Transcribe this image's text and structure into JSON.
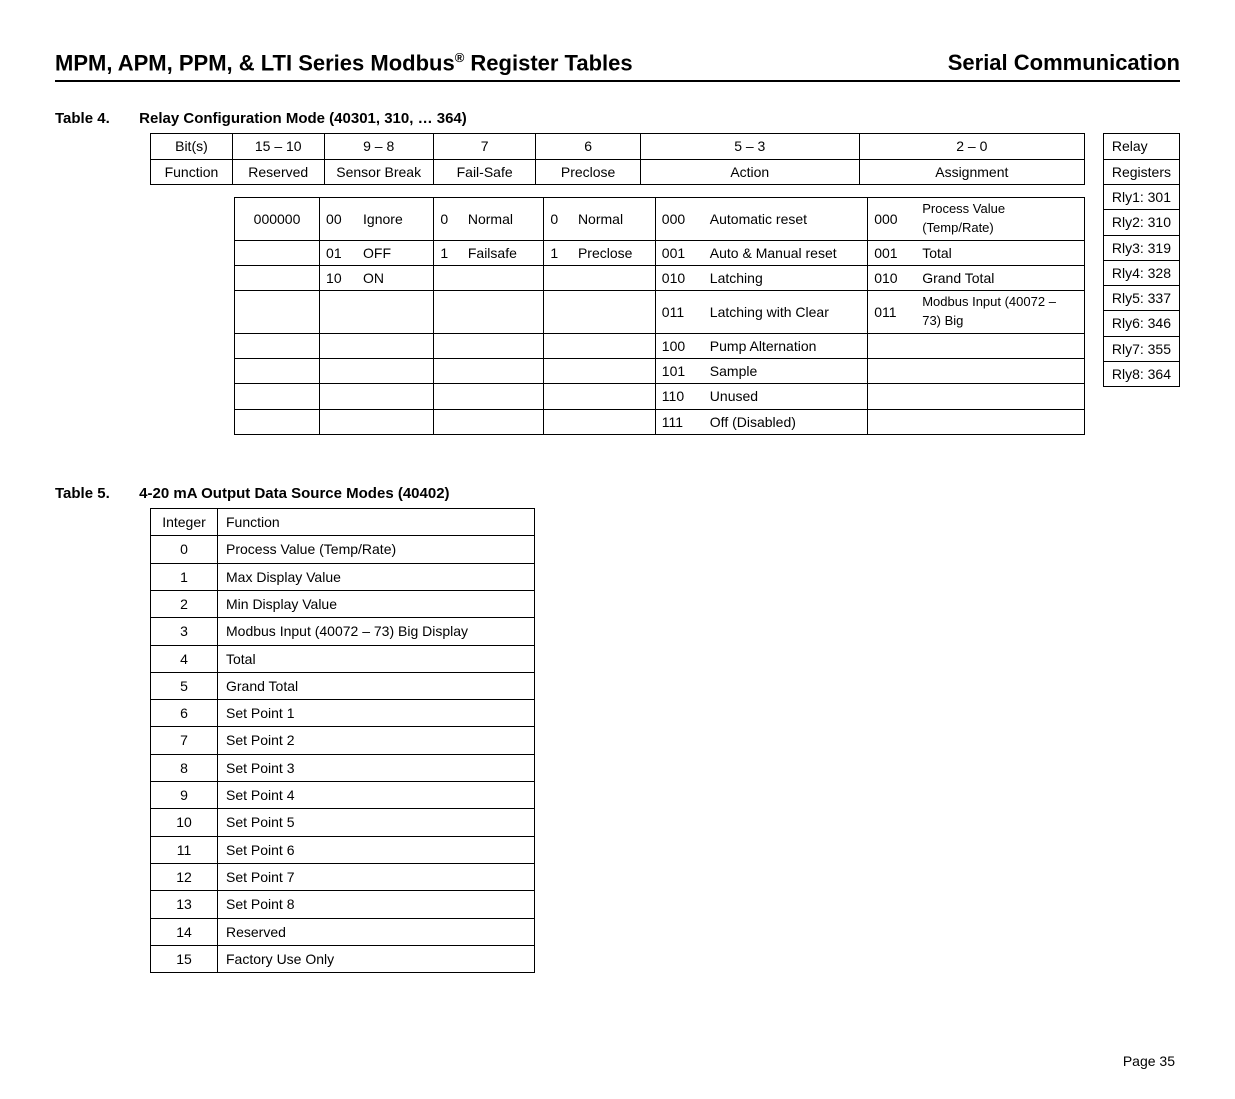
{
  "header": {
    "title_prefix": "MPM, APM, PPM, & LTI Series Modbus",
    "title_sup": "®",
    "title_suffix": " Register Tables",
    "right": "Serial Communication"
  },
  "table4": {
    "label_num": "Table 4.",
    "label_title": "Relay Configuration Mode (40301, 310, … 364)",
    "top_header_row1": [
      "Bit(s)",
      "15 – 10",
      "9 – 8",
      "7",
      "6",
      "5 – 3",
      "2 – 0"
    ],
    "top_header_row2": [
      "Function",
      "Reserved",
      "Sensor Break",
      "Fail-Safe",
      "Preclose",
      "Action",
      "Assignment"
    ],
    "col_widths": {
      "rowhdr": 70,
      "c15": 80,
      "c9": 100,
      "c7": 94,
      "c6": 94,
      "c5": 220,
      "c2": 220
    },
    "rows": [
      {
        "c15": "000000",
        "c9_code": "00",
        "c9_lbl": "Ignore",
        "c7_code": "0",
        "c7_lbl": "Normal",
        "c6_code": "0",
        "c6_lbl": "Normal",
        "c5_code": "000",
        "c5_lbl": "Automatic reset",
        "c2_code": "000",
        "c2_lbl": "Process Value (Temp/Rate)"
      },
      {
        "c15": "",
        "c9_code": "01",
        "c9_lbl": "OFF",
        "c7_code": "1",
        "c7_lbl": "Failsafe",
        "c6_code": "1",
        "c6_lbl": "Preclose",
        "c5_code": "001",
        "c5_lbl": "Auto & Manual reset",
        "c2_code": "001",
        "c2_lbl": "Total"
      },
      {
        "c15": "",
        "c9_code": "10",
        "c9_lbl": "ON",
        "c7_code": "",
        "c7_lbl": "",
        "c6_code": "",
        "c6_lbl": "",
        "c5_code": "010",
        "c5_lbl": "Latching",
        "c2_code": "010",
        "c2_lbl": "Grand Total"
      },
      {
        "c15": "",
        "c9_code": "",
        "c9_lbl": "",
        "c7_code": "",
        "c7_lbl": "",
        "c6_code": "",
        "c6_lbl": "",
        "c5_code": "011",
        "c5_lbl": "Latching with Clear",
        "c2_code": "011",
        "c2_lbl": "Modbus Input (40072 – 73) Big"
      },
      {
        "c15": "",
        "c9_code": "",
        "c9_lbl": "",
        "c7_code": "",
        "c7_lbl": "",
        "c6_code": "",
        "c6_lbl": "",
        "c5_code": "100",
        "c5_lbl": "Pump Alternation",
        "c2_code": "",
        "c2_lbl": ""
      },
      {
        "c15": "",
        "c9_code": "",
        "c9_lbl": "",
        "c7_code": "",
        "c7_lbl": "",
        "c6_code": "",
        "c6_lbl": "",
        "c5_code": "101",
        "c5_lbl": "Sample",
        "c2_code": "",
        "c2_lbl": ""
      },
      {
        "c15": "",
        "c9_code": "",
        "c9_lbl": "",
        "c7_code": "",
        "c7_lbl": "",
        "c6_code": "",
        "c6_lbl": "",
        "c5_code": "110",
        "c5_lbl": "Unused",
        "c2_code": "",
        "c2_lbl": ""
      },
      {
        "c15": "",
        "c9_code": "",
        "c9_lbl": "",
        "c7_code": "",
        "c7_lbl": "",
        "c6_code": "",
        "c6_lbl": "",
        "c5_code": "111",
        "c5_lbl": "Off (Disabled)",
        "c2_code": "",
        "c2_lbl": ""
      }
    ],
    "relay_header1": "Relay",
    "relay_header2": "Registers",
    "relays": [
      "Rly1: 301",
      "Rly2: 310",
      "Rly3: 319",
      "Rly4: 328",
      "Rly5: 337",
      "Rly6: 346",
      "Rly7: 355",
      "Rly8: 364"
    ]
  },
  "table5": {
    "label_num": "Table 5.",
    "label_title": "4-20 mA Output Data Source Modes (40402)",
    "hdr_int": "Integer",
    "hdr_fn": "Function",
    "rows": [
      {
        "i": "0",
        "f": "Process Value (Temp/Rate)"
      },
      {
        "i": "1",
        "f": "Max Display Value"
      },
      {
        "i": "2",
        "f": "Min Display Value"
      },
      {
        "i": "3",
        "f": "Modbus Input (40072 – 73) Big Display"
      },
      {
        "i": "4",
        "f": "Total"
      },
      {
        "i": "5",
        "f": "Grand Total"
      },
      {
        "i": "6",
        "f": "Set Point 1"
      },
      {
        "i": "7",
        "f": "Set Point 2"
      },
      {
        "i": "8",
        "f": "Set Point 3"
      },
      {
        "i": "9",
        "f": "Set Point 4"
      },
      {
        "i": "10",
        "f": "Set Point 5"
      },
      {
        "i": "11",
        "f": "Set Point 6"
      },
      {
        "i": "12",
        "f": "Set Point 7"
      },
      {
        "i": "13",
        "f": "Set Point 8"
      },
      {
        "i": "14",
        "f": "Reserved"
      },
      {
        "i": "15",
        "f": "Factory Use Only"
      }
    ]
  },
  "footer": "Page 35"
}
